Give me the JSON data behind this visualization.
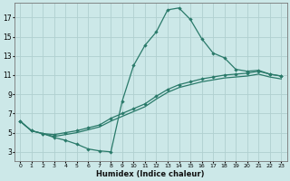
{
  "xlabel": "Humidex (Indice chaleur)",
  "bg_color": "#cce8e8",
  "grid_color": "#b0d0d0",
  "line_color": "#2a7a6a",
  "xlim": [
    -0.5,
    23.5
  ],
  "ylim": [
    2.0,
    18.5
  ],
  "xticks": [
    0,
    1,
    2,
    3,
    4,
    5,
    6,
    7,
    8,
    9,
    10,
    11,
    12,
    13,
    14,
    15,
    16,
    17,
    18,
    19,
    20,
    21,
    22,
    23
  ],
  "yticks": [
    3,
    5,
    7,
    9,
    11,
    13,
    15,
    17
  ],
  "line1_x": [
    0,
    1,
    2,
    3,
    4,
    5,
    6,
    7,
    8,
    9,
    10,
    11,
    12,
    13,
    14,
    15,
    16,
    17,
    18,
    19,
    20,
    21,
    22,
    23
  ],
  "line1_y": [
    6.2,
    5.2,
    4.9,
    4.5,
    4.2,
    3.8,
    3.3,
    3.1,
    3.0,
    8.3,
    12.0,
    14.1,
    15.5,
    17.8,
    18.0,
    16.8,
    14.8,
    13.3,
    12.8,
    11.6,
    11.4,
    11.5,
    11.1,
    10.9
  ],
  "line2_x": [
    0,
    1,
    2,
    3,
    4,
    5,
    6,
    7,
    8,
    9,
    10,
    11,
    12,
    13,
    14,
    15,
    16,
    17,
    18,
    19,
    20,
    21,
    22,
    23
  ],
  "line2_y": [
    6.2,
    5.2,
    4.9,
    4.8,
    5.0,
    5.2,
    5.5,
    5.8,
    6.5,
    7.0,
    7.5,
    8.0,
    8.8,
    9.5,
    10.0,
    10.3,
    10.6,
    10.8,
    11.0,
    11.1,
    11.2,
    11.4,
    11.1,
    10.9
  ],
  "line3_x": [
    0,
    1,
    2,
    3,
    4,
    5,
    6,
    7,
    8,
    9,
    10,
    11,
    12,
    13,
    14,
    15,
    16,
    17,
    18,
    19,
    20,
    21,
    22,
    23
  ],
  "line3_y": [
    6.2,
    5.2,
    4.9,
    4.6,
    4.8,
    5.0,
    5.3,
    5.6,
    6.2,
    6.7,
    7.2,
    7.7,
    8.5,
    9.2,
    9.7,
    10.0,
    10.3,
    10.5,
    10.7,
    10.8,
    10.9,
    11.1,
    10.8,
    10.6
  ],
  "line1_markers_x": [
    0,
    1,
    2,
    3,
    4,
    5,
    6,
    7,
    8,
    9,
    10,
    11,
    12,
    13,
    14,
    15,
    16,
    17,
    18,
    19,
    20,
    21,
    22,
    23
  ],
  "line2_markers_x": [
    0,
    2,
    9,
    13,
    14,
    16,
    19,
    20,
    21,
    22,
    23
  ],
  "line2_markers_y": [
    6.2,
    4.9,
    7.0,
    9.5,
    10.0,
    10.6,
    11.1,
    11.2,
    11.4,
    11.1,
    10.9
  ]
}
